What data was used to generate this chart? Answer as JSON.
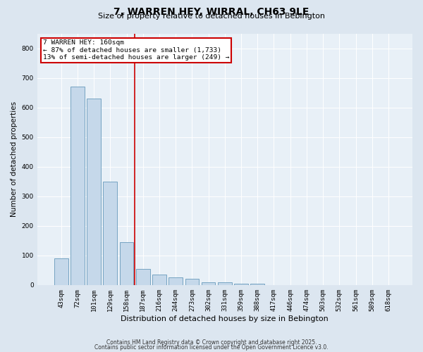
{
  "title_line1": "7, WARREN HEY, WIRRAL, CH63 9LE",
  "title_line2": "Size of property relative to detached houses in Bebington",
  "xlabel": "Distribution of detached houses by size in Bebington",
  "ylabel": "Number of detached properties",
  "categories": [
    "43sqm",
    "72sqm",
    "101sqm",
    "129sqm",
    "158sqm",
    "187sqm",
    "216sqm",
    "244sqm",
    "273sqm",
    "302sqm",
    "331sqm",
    "359sqm",
    "388sqm",
    "417sqm",
    "446sqm",
    "474sqm",
    "503sqm",
    "532sqm",
    "561sqm",
    "589sqm",
    "618sqm"
  ],
  "values": [
    90,
    670,
    630,
    350,
    145,
    55,
    35,
    25,
    20,
    10,
    10,
    5,
    5,
    0,
    0,
    0,
    0,
    0,
    0,
    0,
    0
  ],
  "bar_color": "#c5d8ea",
  "bar_edge_color": "#6699bb",
  "red_line_x": 4.5,
  "marker_label": "7 WARREN HEY: 160sqm",
  "annotation_line1": "← 87% of detached houses are smaller (1,733)",
  "annotation_line2": "13% of semi-detached houses are larger (249) →",
  "annotation_box_color": "#ffffff",
  "annotation_box_edge": "#cc0000",
  "red_line_color": "#cc0000",
  "ylim": [
    0,
    850
  ],
  "yticks": [
    0,
    100,
    200,
    300,
    400,
    500,
    600,
    700,
    800
  ],
  "footer_line1": "Contains HM Land Registry data © Crown copyright and database right 2025.",
  "footer_line2": "Contains public sector information licensed under the Open Government Licence v3.0.",
  "bg_color": "#dce6f0",
  "plot_bg_color": "#e8f0f7",
  "title_fontsize": 10,
  "subtitle_fontsize": 8,
  "ylabel_fontsize": 7.5,
  "xlabel_fontsize": 8,
  "tick_fontsize": 6.5,
  "annot_fontsize": 6.8,
  "footer_fontsize": 5.5
}
